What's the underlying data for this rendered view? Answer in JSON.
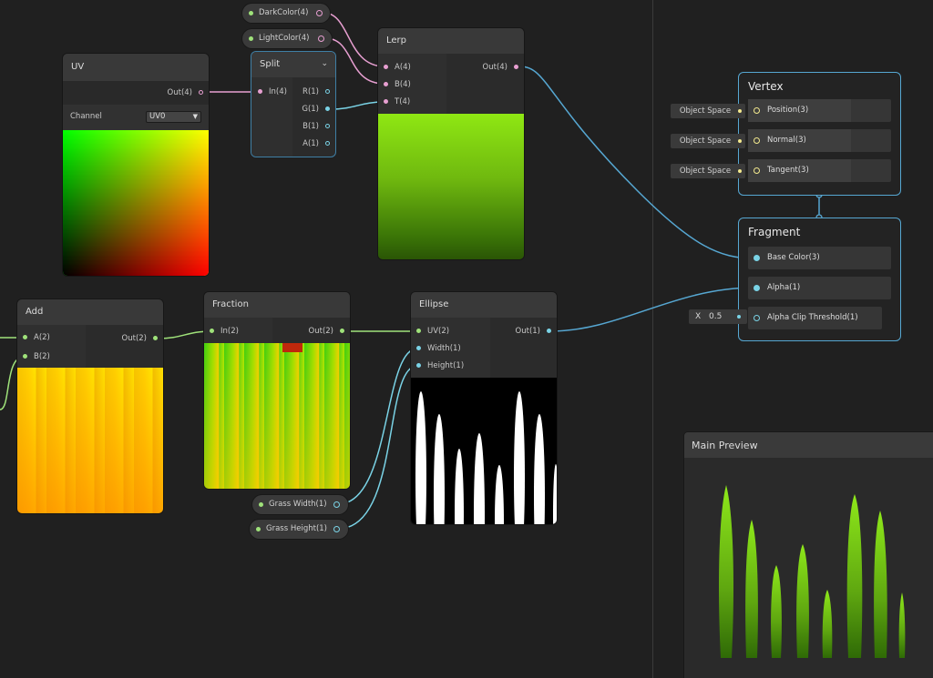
{
  "nodes": {
    "uv": {
      "title": "UV",
      "output": "Out(4)",
      "channel_label": "Channel",
      "channel_value": "UV0"
    },
    "split": {
      "title": "Split",
      "input": "In(4)",
      "outputs": [
        "R(1)",
        "G(1)",
        "B(1)",
        "A(1)"
      ]
    },
    "lerp": {
      "title": "Lerp",
      "inputs": [
        "A(4)",
        "B(4)",
        "T(4)"
      ],
      "output": "Out(4)"
    },
    "add": {
      "title": "Add",
      "inputs": [
        "A(2)",
        "B(2)"
      ],
      "output": "Out(2)"
    },
    "fraction": {
      "title": "Fraction",
      "input": "In(2)",
      "output": "Out(2)"
    },
    "ellipse": {
      "title": "Ellipse",
      "inputs": [
        "UV(2)",
        "Width(1)",
        "Height(1)"
      ],
      "output": "Out(1)"
    }
  },
  "properties": {
    "dark_color": "DarkColor(4)",
    "light_color": "LightColor(4)",
    "grass_width": "Grass Width(1)",
    "grass_height": "Grass Height(1)"
  },
  "vertex": {
    "title": "Vertex",
    "blocks": [
      {
        "space": "Object Space",
        "label": "Position(3)"
      },
      {
        "space": "Object Space",
        "label": "Normal(3)"
      },
      {
        "space": "Object Space",
        "label": "Tangent(3)"
      }
    ]
  },
  "fragment": {
    "title": "Fragment",
    "blocks": [
      {
        "label": "Base Color(3)"
      },
      {
        "label": "Alpha(1)"
      },
      {
        "label": "Alpha Clip Threshold(1)",
        "x_label": "X",
        "x_value": "0.5"
      }
    ]
  },
  "main_preview": {
    "title": "Main Preview"
  },
  "colors": {
    "wire_vector4": "#e79fd1",
    "wire_vector2": "#9fe27a",
    "wire_float": "#7ad3e6",
    "wire_context": "#56a7d2",
    "grass_light": "#8ee81a",
    "grass_dark": "#2f6a06"
  }
}
